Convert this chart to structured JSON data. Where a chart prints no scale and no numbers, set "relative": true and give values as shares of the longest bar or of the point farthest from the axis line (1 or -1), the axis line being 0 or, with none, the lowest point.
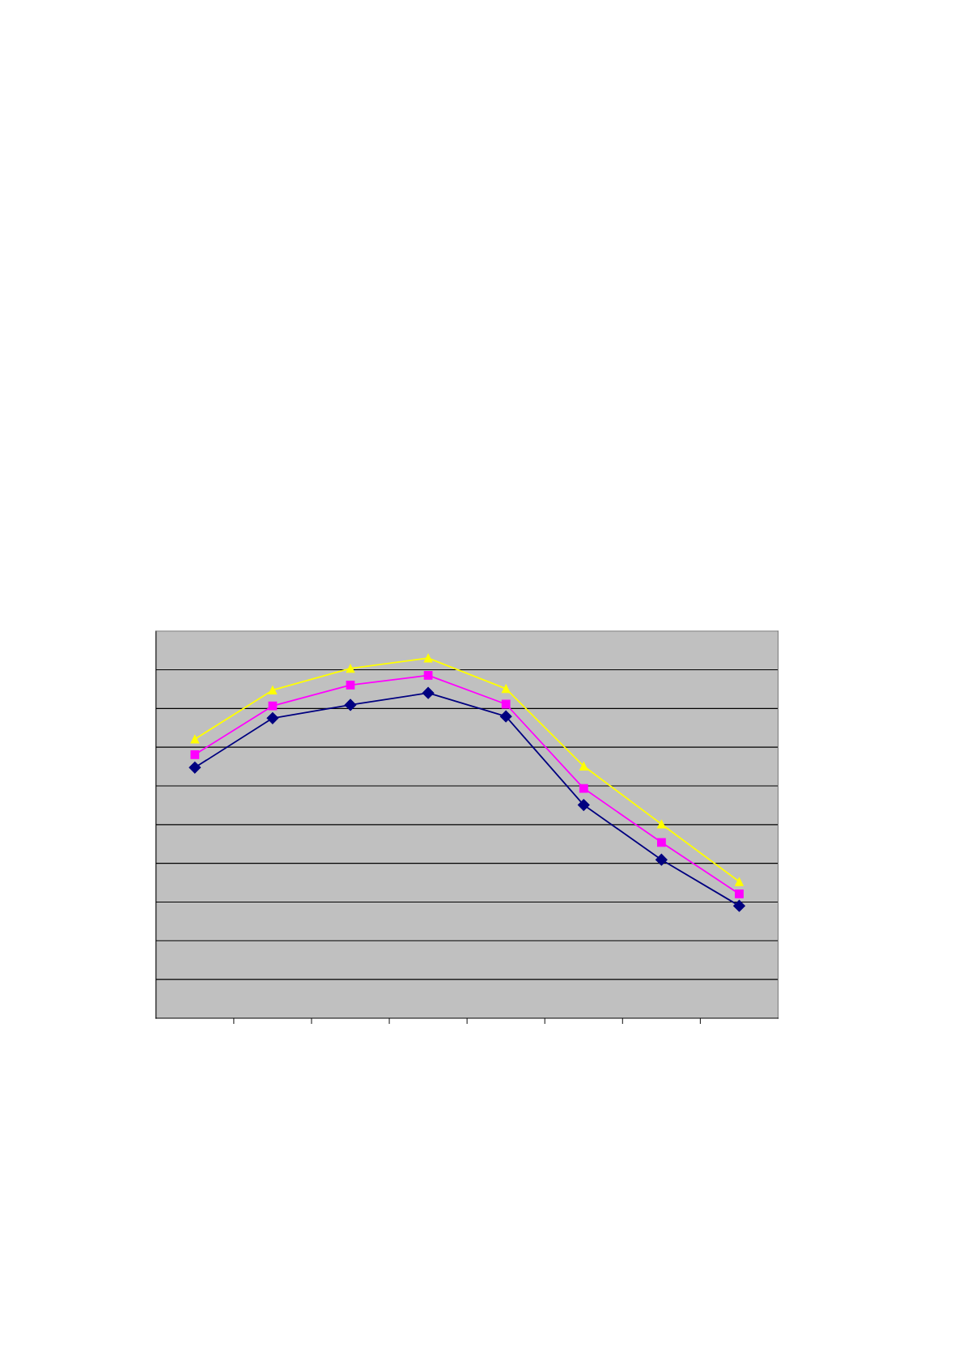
{
  "chart_data": {
    "type": "line",
    "relative": true,
    "categories": [
      null,
      null,
      null,
      null,
      null,
      null,
      null,
      null
    ],
    "series": [
      {
        "color": "#000080",
        "marker": "diamond",
        "values": [
          0.696,
          0.833,
          0.87,
          0.903,
          0.838,
          0.592,
          0.44,
          0.312
        ]
      },
      {
        "color": "#ff00ff",
        "marker": "square",
        "values": [
          0.732,
          0.867,
          0.925,
          0.952,
          0.872,
          0.638,
          0.488,
          0.345
        ]
      },
      {
        "color": "#ffff00",
        "marker": "triangle",
        "values": [
          0.775,
          0.911,
          0.971,
          1,
          0.915,
          0.7,
          0.539,
          0.379
        ]
      }
    ],
    "grid": "y",
    "line_style": "solid"
  }
}
